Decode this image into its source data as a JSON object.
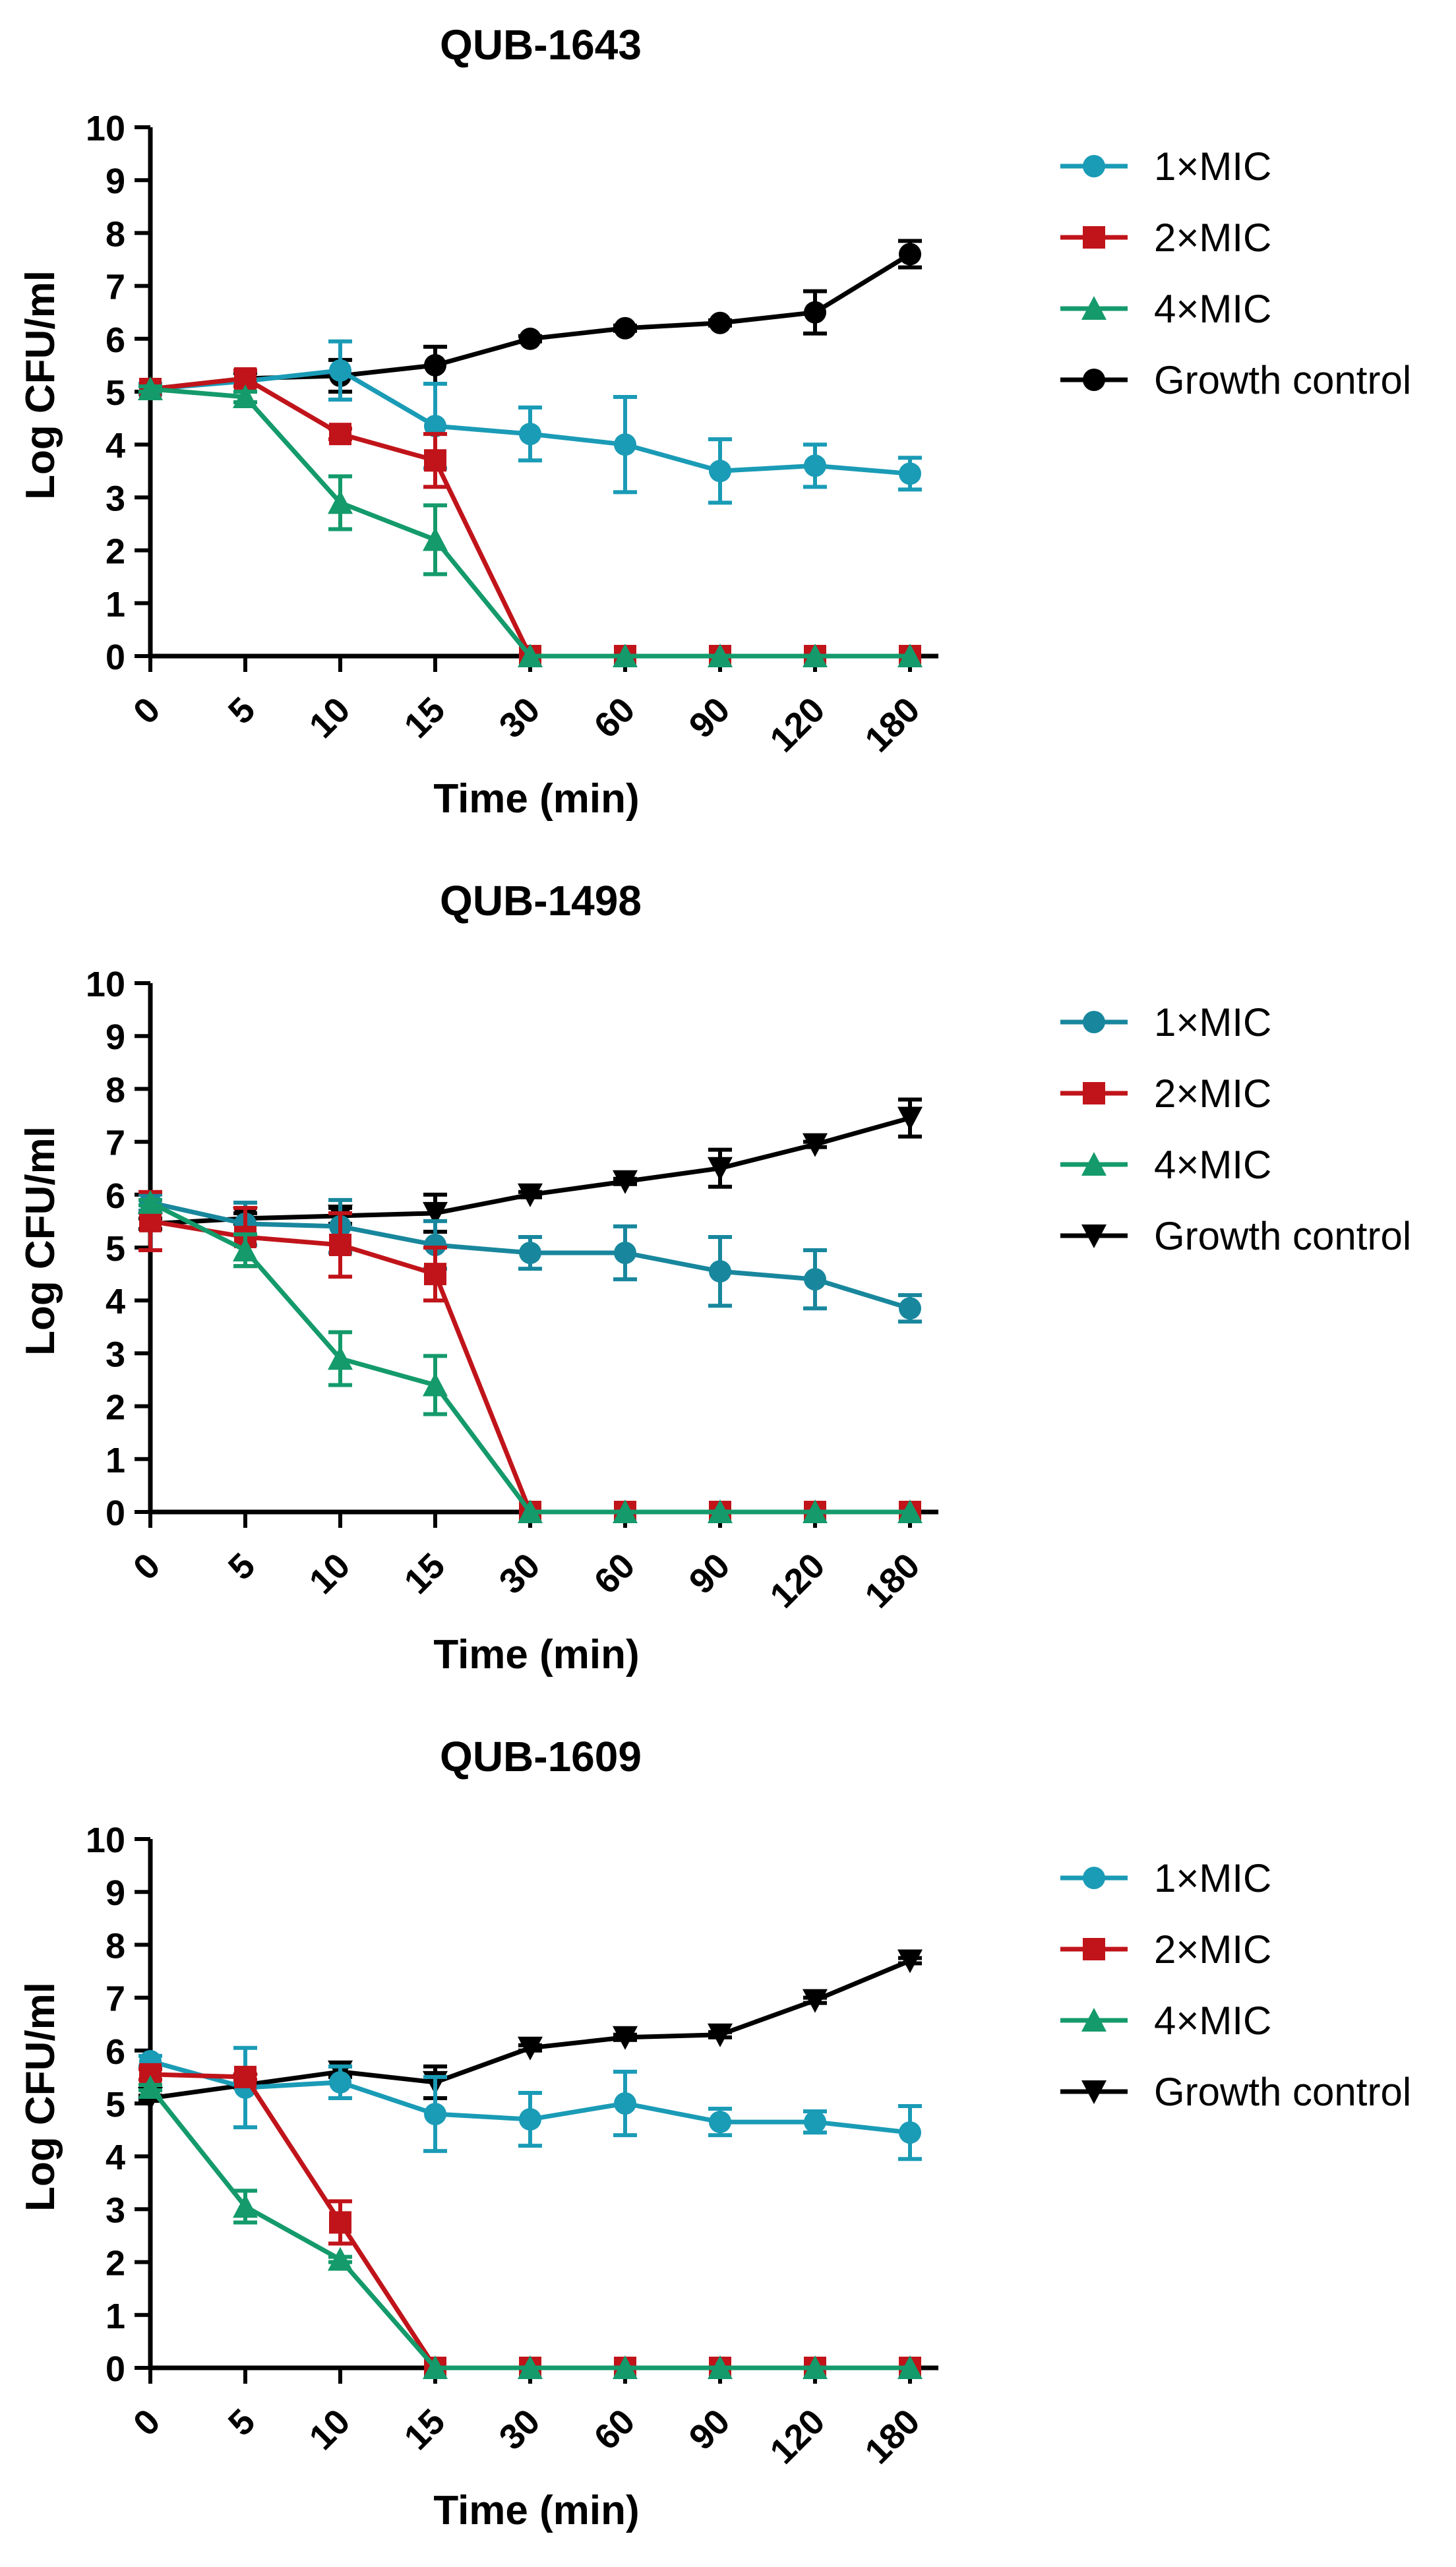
{
  "colors": {
    "mic1": "#1a9bb6",
    "mic1_alt": "#18879d",
    "mic2": "#c0141a",
    "mic4": "#149a6b",
    "control": "#000000"
  },
  "chart_data": [
    {
      "type": "line",
      "title": "QUB-1643",
      "xlabel": "Time (min)",
      "ylabel": "Log CFU/ml",
      "categories": [
        "0",
        "5",
        "10",
        "15",
        "30",
        "60",
        "90",
        "120",
        "180"
      ],
      "ylim": [
        0,
        10
      ],
      "yticks": [
        "0",
        "1",
        "2",
        "3",
        "4",
        "5",
        "6",
        "7",
        "8",
        "9",
        "10"
      ],
      "legend_position": "right",
      "series": [
        {
          "name": "1×MIC",
          "marker": "circle",
          "color": "#1a9bb6",
          "values": [
            5.05,
            5.2,
            5.4,
            4.35,
            4.2,
            4.0,
            3.5,
            3.6,
            3.45
          ],
          "errors": [
            0.1,
            0.2,
            0.55,
            0.8,
            0.5,
            0.9,
            0.6,
            0.4,
            0.3
          ]
        },
        {
          "name": "2×MIC",
          "marker": "square",
          "color": "#c0141a",
          "values": [
            5.05,
            5.25,
            4.2,
            3.7,
            0,
            0,
            0,
            0,
            0
          ],
          "errors": [
            0.05,
            0.15,
            0.1,
            0.5,
            0,
            0,
            0,
            0,
            0
          ]
        },
        {
          "name": "4×MIC",
          "marker": "triangle-up",
          "color": "#149a6b",
          "values": [
            5.05,
            4.9,
            2.9,
            2.2,
            0,
            0,
            0,
            0,
            0
          ],
          "errors": [
            0.05,
            0.1,
            0.5,
            0.65,
            0,
            0,
            0,
            0,
            0
          ]
        },
        {
          "name": "Growth control",
          "marker": "circle",
          "color": "#000000",
          "values": [
            5.05,
            5.25,
            5.3,
            5.5,
            6.0,
            6.2,
            6.3,
            6.5,
            7.6
          ],
          "errors": [
            0.05,
            0.1,
            0.3,
            0.35,
            0.05,
            0.05,
            0.05,
            0.4,
            0.25
          ]
        }
      ]
    },
    {
      "type": "line",
      "title": "QUB-1498",
      "xlabel": "Time (min)",
      "ylabel": "Log CFU/ml",
      "categories": [
        "0",
        "5",
        "10",
        "15",
        "30",
        "60",
        "90",
        "120",
        "180"
      ],
      "ylim": [
        0,
        10
      ],
      "yticks": [
        "0",
        "1",
        "2",
        "3",
        "4",
        "5",
        "6",
        "7",
        "8",
        "9",
        "10"
      ],
      "legend_position": "right",
      "series": [
        {
          "name": "1×MIC",
          "marker": "circle",
          "color": "#18879d",
          "values": [
            5.85,
            5.45,
            5.4,
            5.05,
            4.9,
            4.9,
            4.55,
            4.4,
            3.85
          ],
          "errors": [
            0.15,
            0.4,
            0.5,
            0.45,
            0.3,
            0.5,
            0.65,
            0.55,
            0.25
          ]
        },
        {
          "name": "2×MIC",
          "marker": "square",
          "color": "#c0141a",
          "values": [
            5.5,
            5.2,
            5.05,
            4.5,
            0,
            0,
            0,
            0,
            0
          ],
          "errors": [
            0.55,
            0.55,
            0.6,
            0.5,
            0,
            0,
            0,
            0,
            0
          ]
        },
        {
          "name": "4×MIC",
          "marker": "triangle-up",
          "color": "#149a6b",
          "values": [
            5.85,
            4.95,
            2.9,
            2.4,
            0,
            0,
            0,
            0,
            0
          ],
          "errors": [
            0.05,
            0.3,
            0.5,
            0.55,
            0,
            0,
            0,
            0,
            0
          ]
        },
        {
          "name": "Growth control",
          "marker": "triangle-down",
          "color": "#000000",
          "values": [
            5.45,
            5.55,
            5.6,
            5.65,
            6.0,
            6.25,
            6.5,
            6.95,
            7.45
          ],
          "errors": [
            0.1,
            0.1,
            0.15,
            0.35,
            0.05,
            0.05,
            0.35,
            0.05,
            0.35
          ]
        }
      ]
    },
    {
      "type": "line",
      "title": "QUB-1609",
      "xlabel": "Time (min)",
      "ylabel": "Log CFU/ml",
      "categories": [
        "0",
        "5",
        "10",
        "15",
        "30",
        "60",
        "90",
        "120",
        "180"
      ],
      "ylim": [
        0,
        10
      ],
      "yticks": [
        "0",
        "1",
        "2",
        "3",
        "4",
        "5",
        "6",
        "7",
        "8",
        "9",
        "10"
      ],
      "legend_position": "right",
      "series": [
        {
          "name": "1×MIC",
          "marker": "circle",
          "color": "#1a9bb6",
          "values": [
            5.8,
            5.3,
            5.4,
            4.8,
            4.7,
            5.0,
            4.65,
            4.65,
            4.45
          ],
          "errors": [
            0.1,
            0.75,
            0.3,
            0.7,
            0.5,
            0.6,
            0.25,
            0.2,
            0.5
          ]
        },
        {
          "name": "2×MIC",
          "marker": "square",
          "color": "#c0141a",
          "values": [
            5.55,
            5.5,
            2.75,
            0,
            0,
            0,
            0,
            0,
            0
          ],
          "errors": [
            0.1,
            0.05,
            0.4,
            0,
            0,
            0,
            0,
            0,
            0
          ]
        },
        {
          "name": "4×MIC",
          "marker": "triangle-up",
          "color": "#149a6b",
          "values": [
            5.3,
            3.05,
            2.05,
            0,
            0,
            0,
            0,
            0,
            0
          ],
          "errors": [
            0.05,
            0.3,
            0.05,
            0,
            0,
            0,
            0,
            0,
            0
          ]
        },
        {
          "name": "Growth control",
          "marker": "triangle-down",
          "color": "#000000",
          "values": [
            5.1,
            5.35,
            5.6,
            5.4,
            6.05,
            6.25,
            6.3,
            6.95,
            7.7
          ],
          "errors": [
            0.05,
            0.05,
            0.1,
            0.3,
            0.05,
            0.05,
            0.05,
            0.05,
            0.05
          ]
        }
      ]
    }
  ]
}
